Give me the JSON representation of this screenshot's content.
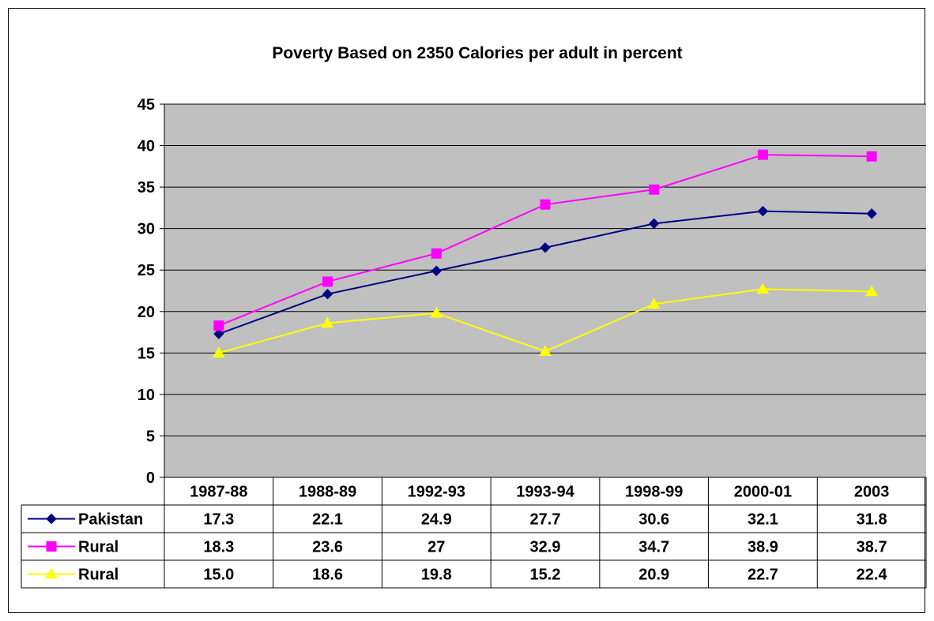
{
  "chart_data": {
    "type": "line",
    "title": "Poverty Based on 2350 Calories per adult in percent",
    "xlabel": "",
    "ylabel": "",
    "ylim": [
      0,
      45
    ],
    "yticks": [
      0,
      5,
      10,
      15,
      20,
      25,
      30,
      35,
      40,
      45
    ],
    "grid": true,
    "legend": "data-table",
    "plot_background": "#c0c0c0",
    "categories": [
      "1987-88",
      "1988-89",
      "1992-93",
      "1993-94",
      "1998-99",
      "2000-01",
      "2003"
    ],
    "series": [
      {
        "name": "Pakistan",
        "color": "#000080",
        "marker": "diamond",
        "values": [
          17.3,
          22.1,
          24.9,
          27.7,
          30.6,
          32.1,
          31.8
        ],
        "labels": [
          "17.3",
          "22.1",
          "24.9",
          "27.7",
          "30.6",
          "32.1",
          "31.8"
        ]
      },
      {
        "name": "Rural",
        "color": "#ff00ff",
        "marker": "square",
        "values": [
          18.3,
          23.6,
          27,
          32.9,
          34.7,
          38.9,
          38.7
        ],
        "labels": [
          "18.3",
          "23.6",
          "27",
          "32.9",
          "34.7",
          "38.9",
          "38.7"
        ]
      },
      {
        "name": "Rural",
        "color": "#ffff00",
        "marker": "triangle",
        "values": [
          15.0,
          18.6,
          19.8,
          15.2,
          20.9,
          22.7,
          22.4
        ],
        "labels": [
          "15.0",
          "18.6",
          "19.8",
          "15.2",
          "20.9",
          "22.7",
          "22.4"
        ]
      }
    ]
  }
}
